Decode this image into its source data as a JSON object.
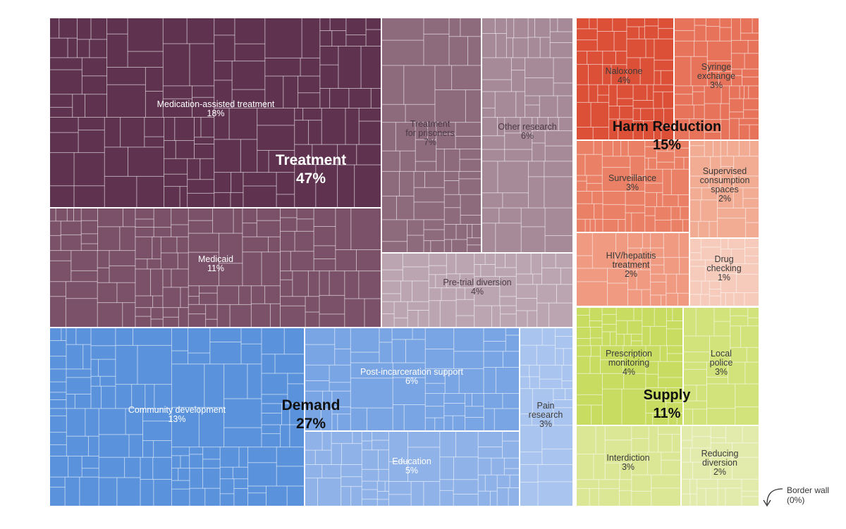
{
  "chart_data": {
    "type": "treemap",
    "title": "",
    "categories": [
      {
        "name": "Treatment",
        "label": "Treatment",
        "value": "47%",
        "color": "#5f3350",
        "items": [
          {
            "name": "Medication-assisted treatment",
            "lines": [
              "Medication-assisted treatment"
            ],
            "value": "18%",
            "color": "#5f3350"
          },
          {
            "name": "Medicaid",
            "lines": [
              "Medicaid"
            ],
            "value": "11%",
            "color": "#7b5069"
          },
          {
            "name": "Treatment for prisoners",
            "lines": [
              "Treatment",
              "for prisoners"
            ],
            "value": "7%",
            "color": "#8e6a7d"
          },
          {
            "name": "Other research",
            "lines": [
              "Other research"
            ],
            "value": "6%",
            "color": "#a68a98"
          },
          {
            "name": "Pre-trial diversion",
            "lines": [
              "Pre-trial diversion"
            ],
            "value": "4%",
            "color": "#baa5b0"
          }
        ]
      },
      {
        "name": "Demand",
        "label": "Demand",
        "value": "27%",
        "color": "#5a92dc",
        "items": [
          {
            "name": "Community development",
            "lines": [
              "Community development"
            ],
            "value": "13%",
            "color": "#5a92dc"
          },
          {
            "name": "Post-incarceration support",
            "lines": [
              "Post-incarceration support"
            ],
            "value": "6%",
            "color": "#7aa5e4"
          },
          {
            "name": "Education",
            "lines": [
              "Education"
            ],
            "value": "5%",
            "color": "#8fb2e8"
          },
          {
            "name": "Pain research",
            "lines": [
              "Pain",
              "research"
            ],
            "value": "3%",
            "color": "#a9c4ee"
          }
        ]
      },
      {
        "name": "Harm Reduction",
        "label": "Harm Reduction",
        "value": "15%",
        "color": "#d9503a",
        "items": [
          {
            "name": "Naloxone",
            "lines": [
              "Naloxone"
            ],
            "value": "4%",
            "color": "#dc5038"
          },
          {
            "name": "Syringe exchange",
            "lines": [
              "Syringe",
              "exchange"
            ],
            "value": "3%",
            "color": "#e6735a"
          },
          {
            "name": "Surveillance",
            "lines": [
              "Surveillance"
            ],
            "value": "3%",
            "color": "#ea8065"
          },
          {
            "name": "Supervised consumption spaces",
            "lines": [
              "Supervised",
              "consumption",
              "spaces"
            ],
            "value": "2%",
            "color": "#f2ac94"
          },
          {
            "name": "HIV/hepatitis treatment",
            "lines": [
              "HIV/hepatitis",
              "treatment"
            ],
            "value": "2%",
            "color": "#ef9a81"
          },
          {
            "name": "Drug checking",
            "lines": [
              "Drug",
              "checking"
            ],
            "value": "1%",
            "color": "#f6cbbb"
          }
        ]
      },
      {
        "name": "Supply",
        "label": "Supply",
        "value": "11%",
        "color": "#c5d95c",
        "items": [
          {
            "name": "Prescription monitoring",
            "lines": [
              "Prescription",
              "monitoring"
            ],
            "value": "4%",
            "color": "#c9dc62"
          },
          {
            "name": "Local police",
            "lines": [
              "Local",
              "police"
            ],
            "value": "3%",
            "color": "#d3e37b"
          },
          {
            "name": "Interdiction",
            "lines": [
              "Interdiction"
            ],
            "value": "3%",
            "color": "#dbe795"
          },
          {
            "name": "Reducing diversion",
            "lines": [
              "Reducing",
              "diversion"
            ],
            "value": "2%",
            "color": "#e2ebab"
          }
        ]
      }
    ],
    "annotation": {
      "name": "Border wall",
      "value": "(0%)"
    }
  }
}
